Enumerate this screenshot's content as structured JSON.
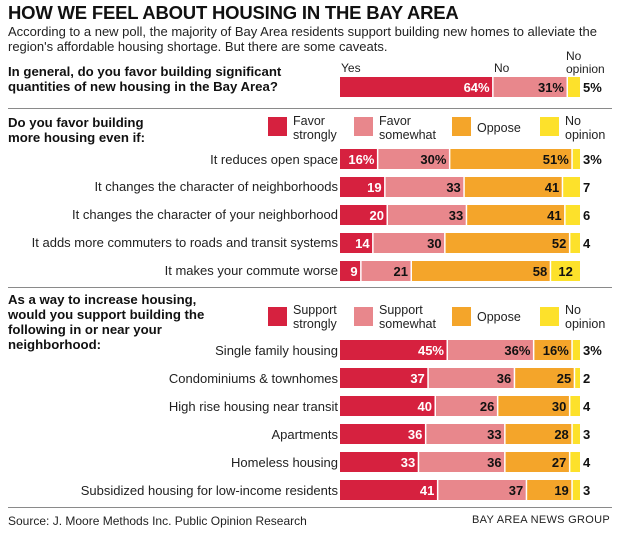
{
  "title": "HOW WE FEEL ABOUT HOUSING IN THE BAY AREA",
  "subtitle": "According to a new poll, the majority of Bay Area residents support building new homes to alleviate the region's affordable housing shortage. But there are some caveats.",
  "source": "Source: J. Moore Methods Inc. Public Opinion Research",
  "credit": "BAY AREA NEWS GROUP",
  "colors": {
    "red": "#d6213f",
    "pink": "#e8878c",
    "orange": "#f4a52a",
    "yellow": "#fde12b"
  },
  "chart_data": [
    {
      "type": "bar",
      "orientation": "horizontal-stacked",
      "title": "In general, do you favor building significant quantities of new housing in the Bay Area?",
      "column_headers": [
        "Yes",
        "No",
        "No opinion"
      ],
      "categories": [
        ""
      ],
      "series": [
        {
          "name": "Yes",
          "values": [
            64
          ],
          "labels": [
            "64%"
          ]
        },
        {
          "name": "No",
          "values": [
            31
          ],
          "labels": [
            "31%"
          ]
        },
        {
          "name": "No opinion",
          "values": [
            5
          ],
          "labels": [
            "5%"
          ]
        }
      ]
    },
    {
      "type": "bar",
      "orientation": "horizontal-stacked",
      "title": "Do you favor building more housing even if:",
      "legend": [
        "Favor strongly",
        "Favor somewhat",
        "Oppose",
        "No opinion"
      ],
      "categories": [
        "It reduces open space",
        "It changes the character of neighborhoods",
        "It changes the character of your neighborhood",
        "It adds more commuters to roads and transit systems",
        "It makes your commute worse"
      ],
      "series": [
        {
          "name": "Favor strongly",
          "values": [
            16,
            19,
            20,
            14,
            9
          ],
          "labels": [
            "16%",
            "19",
            "20",
            "14",
            "9"
          ]
        },
        {
          "name": "Favor somewhat",
          "values": [
            30,
            33,
            33,
            30,
            21
          ],
          "labels": [
            "30%",
            "33",
            "33",
            "30",
            "21"
          ]
        },
        {
          "name": "Oppose",
          "values": [
            51,
            41,
            41,
            52,
            58
          ],
          "labels": [
            "51%",
            "41",
            "41",
            "52",
            "58"
          ]
        },
        {
          "name": "No opinion",
          "values": [
            3,
            7,
            6,
            4,
            12
          ],
          "labels": [
            "3%",
            "7",
            "6",
            "4",
            "12"
          ]
        }
      ]
    },
    {
      "type": "bar",
      "orientation": "horizontal-stacked",
      "title": "As a way to increase housing, would you support building the following in or near your neighborhood:",
      "legend": [
        "Support strongly",
        "Support somewhat",
        "Oppose",
        "No opinion"
      ],
      "categories": [
        "Single family housing",
        "Condominiums & townhomes",
        "High rise housing near transit",
        "Apartments",
        "Homeless housing",
        "Subsidized housing for low-income residents"
      ],
      "series": [
        {
          "name": "Support strongly",
          "values": [
            45,
            37,
            40,
            36,
            33,
            41
          ],
          "labels": [
            "45%",
            "37",
            "40",
            "36",
            "33",
            "41"
          ]
        },
        {
          "name": "Support somewhat",
          "values": [
            36,
            36,
            26,
            33,
            36,
            37
          ],
          "labels": [
            "36%",
            "36",
            "26",
            "33",
            "36",
            "37"
          ]
        },
        {
          "name": "Oppose",
          "values": [
            16,
            25,
            30,
            28,
            27,
            19
          ],
          "labels": [
            "16%",
            "25",
            "30",
            "28",
            "27",
            "19"
          ]
        },
        {
          "name": "No opinion",
          "values": [
            3,
            2,
            4,
            3,
            4,
            3
          ],
          "labels": [
            "3%",
            "2",
            "4",
            "3",
            "4",
            "3"
          ]
        }
      ]
    }
  ]
}
